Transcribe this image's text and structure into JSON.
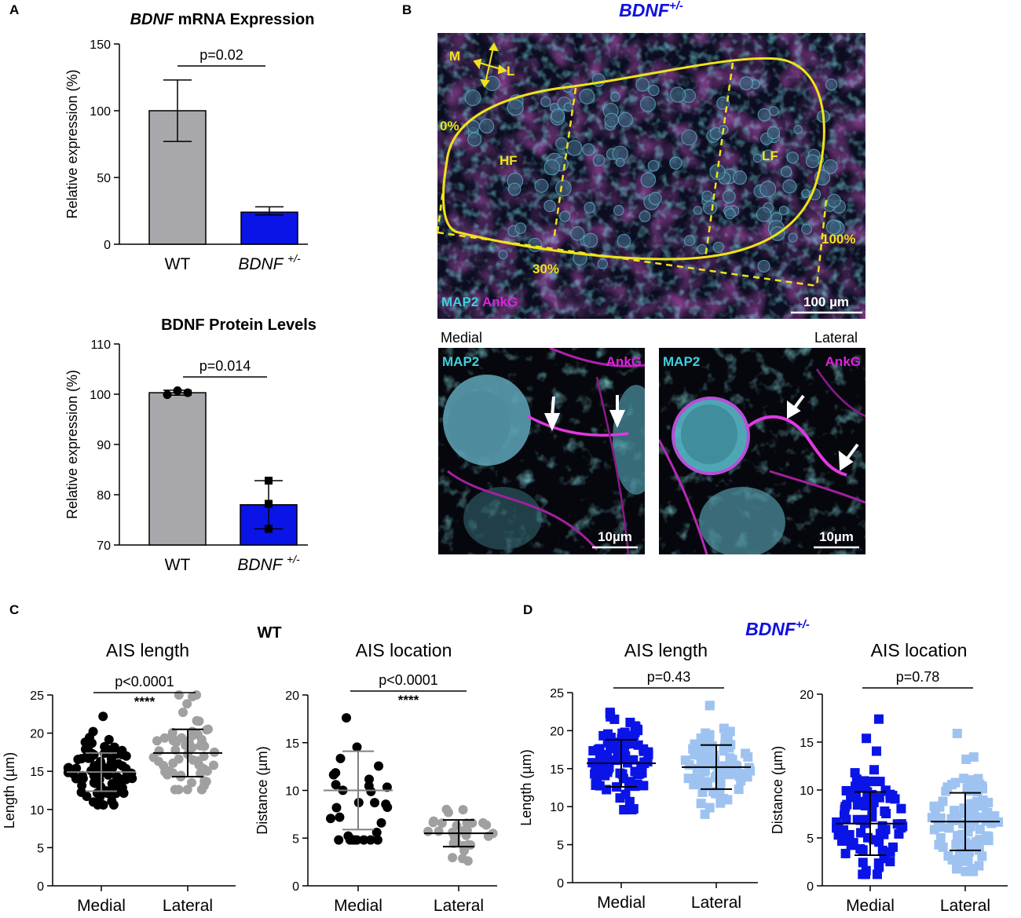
{
  "panel_labels": {
    "a": "A",
    "b": "B",
    "c": "C",
    "d": "D"
  },
  "colors": {
    "wt_gray": "#a8a8ac",
    "bdnf_blue": "#0a14e6",
    "lateral_light_blue": "#9ec3f0",
    "lateral_gray": "#a0a0a0",
    "cyan": "#3fd0df",
    "magenta": "#e020e0",
    "yellow": "#f2e218"
  },
  "micrograph": {
    "title": "BDNF+/-",
    "title_base": "BDNF",
    "title_sup": "+/-",
    "compass_m": "M",
    "compass_l": "L",
    "pct_0": "0%",
    "pct_30": "30%",
    "pct_100": "100%",
    "hf": "HF",
    "lf": "LF",
    "stain_map2": "MAP2",
    "stain_ankg": "AnkG",
    "scale_main": "100 µm",
    "medial": "Medial",
    "lateral": "Lateral",
    "scale_inset": "10µm"
  },
  "chart_data": [
    {
      "id": "mrna",
      "type": "bar",
      "title": "BDNF mRNA Expression",
      "title_italic": "BDNF",
      "title_rest": " mRNA Expression",
      "ylabel": "Relative expression (%)",
      "ylim": [
        0,
        150
      ],
      "yticks": [
        0,
        50,
        100,
        150
      ],
      "categories": [
        "WT",
        "BDNF+/-"
      ],
      "category_labels": [
        {
          "base": "WT",
          "sup": ""
        },
        {
          "base": "BDNF ",
          "sup": "+/-"
        }
      ],
      "values": [
        100,
        24
      ],
      "error_high": [
        123,
        28
      ],
      "error_low": [
        77,
        22
      ],
      "p_text": "p=0.02"
    },
    {
      "id": "protein",
      "type": "bar",
      "title": "BDNF Protein Levels",
      "ylabel": "Relative expression (%)",
      "ylim": [
        70,
        110
      ],
      "yticks": [
        70,
        80,
        90,
        100,
        110
      ],
      "categories": [
        "WT",
        "BDNF+/-"
      ],
      "category_labels": [
        {
          "base": "WT",
          "sup": ""
        },
        {
          "base": "BDNF ",
          "sup": "+/-"
        }
      ],
      "values": [
        100.3,
        78
      ],
      "error_high": [
        100.8,
        82.8
      ],
      "error_low": [
        99.8,
        73.2
      ],
      "points": [
        [
          99.9,
          100.7,
          100.3
        ],
        [
          82.8,
          78.2,
          73.2
        ]
      ],
      "p_text": "p=0.014"
    },
    {
      "id": "wt-ais-length",
      "type": "scatter",
      "group_title": "WT",
      "title": "AIS length",
      "ylabel": "Length (µm)",
      "ylim": [
        0,
        25
      ],
      "yticks": [
        0,
        5,
        10,
        15,
        20,
        25
      ],
      "categories": [
        "Medial",
        "Lateral"
      ],
      "means": [
        14.9,
        17.4
      ],
      "sd": [
        2.5,
        3.1
      ],
      "spread_low": [
        10.6,
        12.6
      ],
      "spread_high": [
        22.2,
        25.0
      ],
      "p_text": "p<0.0001",
      "stars": "****"
    },
    {
      "id": "wt-ais-location",
      "type": "scatter",
      "title": "AIS location",
      "ylabel": "Distance (µm)",
      "ylim": [
        0,
        20
      ],
      "yticks": [
        0,
        5,
        10,
        15,
        20
      ],
      "categories": [
        "Medial",
        "Lateral"
      ],
      "means": [
        10.0,
        5.5
      ],
      "sd": [
        4.1,
        1.4
      ],
      "spread_low": [
        4.8,
        2.6
      ],
      "spread_high": [
        17.6,
        8.0
      ],
      "p_text": "p<0.0001",
      "stars": "****"
    },
    {
      "id": "bdnf-ais-length",
      "type": "scatter",
      "group_title": "BDNF+/-",
      "group_title_base": "BDNF",
      "group_title_sup": "+/-",
      "title": "AIS length",
      "ylabel": "Length (µm)",
      "ylim": [
        0,
        25
      ],
      "yticks": [
        0,
        5,
        10,
        15,
        20,
        25
      ],
      "categories": [
        "Medial",
        "Lateral"
      ],
      "means": [
        15.7,
        15.2
      ],
      "sd": [
        3.1,
        2.9
      ],
      "spread_low": [
        9.6,
        9.0
      ],
      "spread_high": [
        22.4,
        23.3
      ],
      "p_text": "p=0.43",
      "stars": ""
    },
    {
      "id": "bdnf-ais-location",
      "type": "scatter",
      "title": "AIS location",
      "ylabel": "Distance (µm)",
      "ylim": [
        0,
        20
      ],
      "yticks": [
        0,
        5,
        10,
        15,
        20
      ],
      "categories": [
        "Medial",
        "Lateral"
      ],
      "means": [
        6.5,
        6.7
      ],
      "sd": [
        3.3,
        3.0
      ],
      "spread_low": [
        1.2,
        1.5
      ],
      "spread_high": [
        17.4,
        15.9
      ],
      "p_text": "p=0.78",
      "stars": ""
    }
  ]
}
